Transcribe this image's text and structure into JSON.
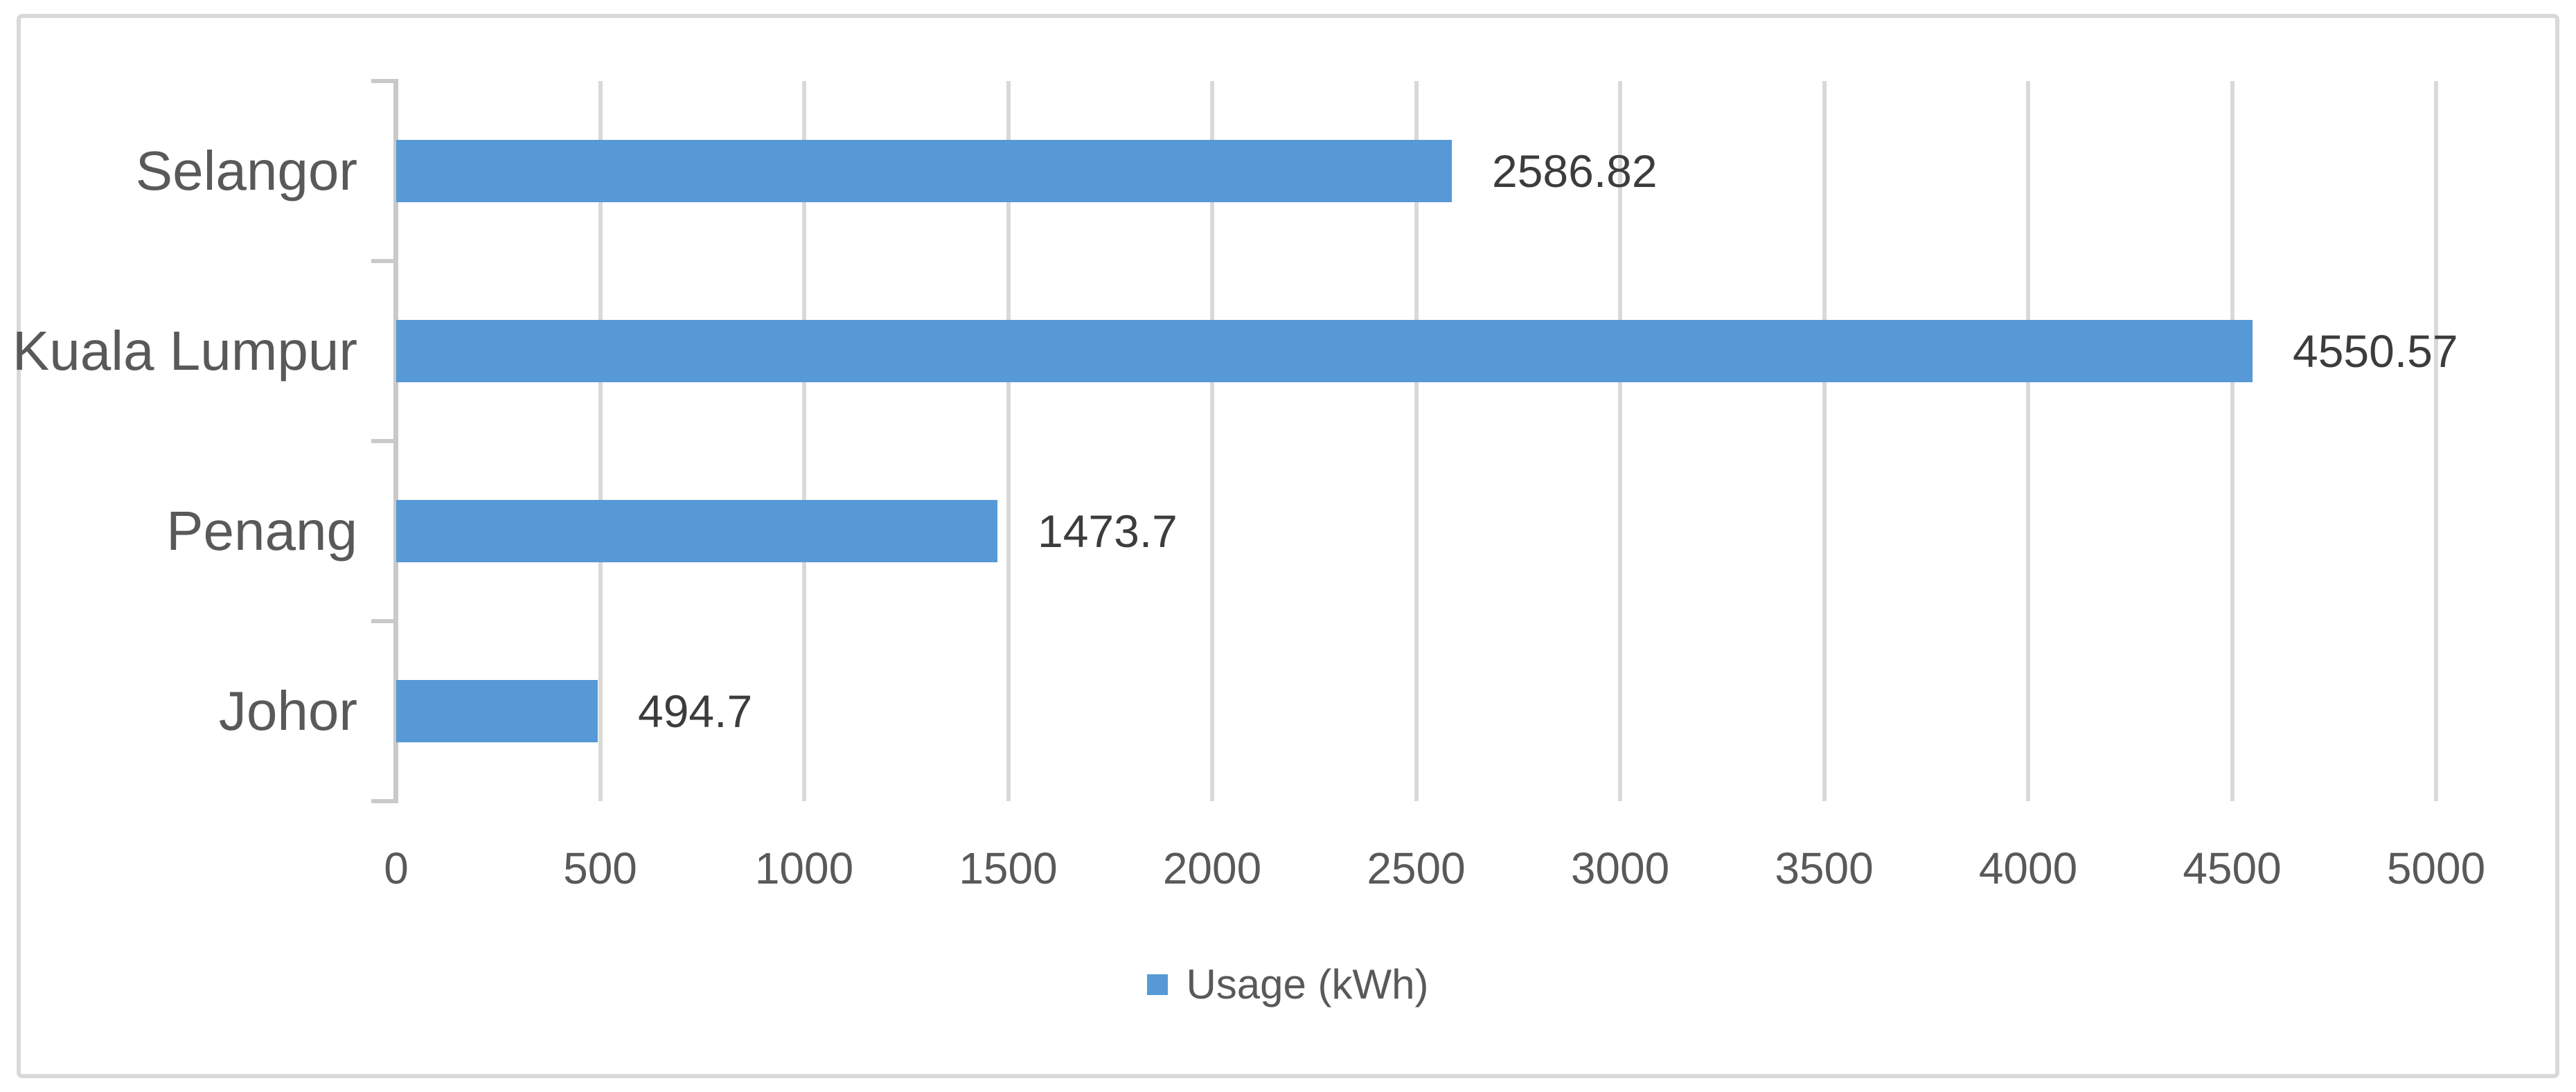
{
  "chart_data": {
    "type": "bar",
    "orientation": "horizontal",
    "title": "",
    "xlabel": "",
    "ylabel": "",
    "categories": [
      "Selangor",
      "Kuala Lumpur",
      "Penang",
      "Johor"
    ],
    "series": [
      {
        "name": "Usage (kWh)",
        "values": [
          2586.82,
          4550.57,
          1473.7,
          494.7
        ],
        "value_labels": [
          "2586.82",
          "4550.57",
          "1473.7",
          "494.7"
        ]
      }
    ],
    "xlim": [
      0,
      5000
    ],
    "x_ticks": [
      0,
      500,
      1000,
      1500,
      2000,
      2500,
      3000,
      3500,
      4000,
      4500,
      5000
    ],
    "x_tick_labels": [
      "0",
      "500",
      "1000",
      "1500",
      "2000",
      "2500",
      "3000",
      "3500",
      "4000",
      "4500",
      "5000"
    ],
    "grid": true,
    "data_labels_shown": true,
    "legend_position": "bottom"
  },
  "legend": {
    "label": "Usage (kWh)"
  },
  "colors": {
    "bar": "#5699D6",
    "gridline": "#D9D9D9",
    "axis_line": "#C9C9C9",
    "frame_border": "#D9D9D9",
    "axis_text": "#595959",
    "category_text": "#595959",
    "data_label_text": "#3C3C3C",
    "legend_text": "#595959",
    "background": "#FFFFFF"
  }
}
